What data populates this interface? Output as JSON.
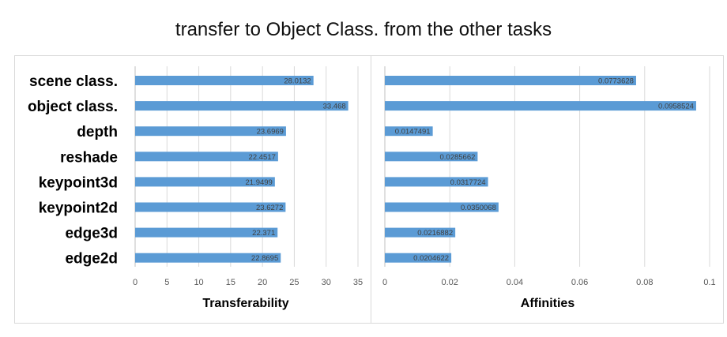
{
  "page": {
    "title": "transfer to Object Class. from the other tasks"
  },
  "chart_data": [
    {
      "type": "bar",
      "orientation": "horizontal",
      "categories": [
        "scene class.",
        "object class.",
        "depth",
        "reshade",
        "keypoint3d",
        "keypoint2d",
        "edge3d",
        "edge2d"
      ],
      "values": [
        28.0132,
        33.468,
        23.6969,
        22.4517,
        21.9499,
        23.6272,
        22.371,
        22.8695
      ],
      "value_labels": [
        "28.0132",
        "33.468",
        "23.6969",
        "22.4517",
        "21.9499",
        "23.6272",
        "22.371",
        "22.8695"
      ],
      "xlabel": "Transferability",
      "ylabel": "",
      "xlim": [
        0,
        35
      ],
      "xticks": [
        "0",
        "5",
        "10",
        "15",
        "20",
        "25",
        "30",
        "35"
      ],
      "grid": true,
      "bar_color": "#5b9bd5"
    },
    {
      "type": "bar",
      "orientation": "horizontal",
      "categories": [
        "scene class.",
        "object class.",
        "depth",
        "reshade",
        "keypoint3d",
        "keypoint2d",
        "edge3d",
        "edge2d"
      ],
      "values": [
        0.0773628,
        0.0958524,
        0.0147491,
        0.0285662,
        0.0317724,
        0.0350068,
        0.0216882,
        0.0204622
      ],
      "value_labels": [
        "0.0773628",
        "0.0958524",
        "0.0147491",
        "0.0285662",
        "0.0317724",
        "0.0350068",
        "0.0216882",
        "0.0204622"
      ],
      "xlabel": "Affinities",
      "ylabel": "",
      "xlim": [
        0,
        0.1
      ],
      "xticks": [
        "0",
        "0.02",
        "0.04",
        "0.06",
        "0.08",
        "0.1"
      ],
      "grid": true,
      "bar_color": "#5b9bd5"
    }
  ]
}
